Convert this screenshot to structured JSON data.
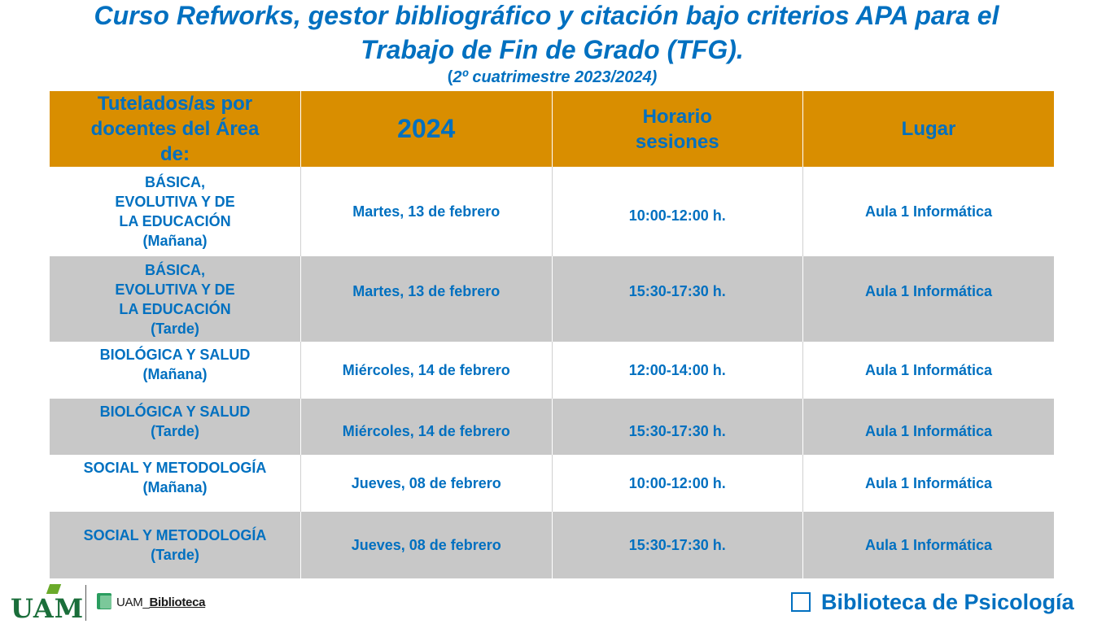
{
  "title": {
    "line1": "Curso Refworks, gestor bibliográfico y citación bajo criterios APA para el",
    "line2": "Trabajo de Fin de Grado (TFG).",
    "line3_open": "(",
    "line3_text": "2º cuatrimestre 2023/2024)"
  },
  "table": {
    "headers": {
      "area": "Tutelados/as por docentes del Área de:",
      "year": "2024",
      "time": "Horario sesiones",
      "place": "Lugar"
    },
    "rows": [
      {
        "area": "BÁSICA,\nEVOLUTIVA Y DE\nLA EDUCACIÓN\n(Mañana)",
        "date": "Martes, 13 de febrero",
        "time": "10:00-12:00 h.",
        "place": "Aula 1 Informática"
      },
      {
        "area": "BÁSICA,\nEVOLUTIVA Y DE\nLA EDUCACIÓN\n(Tarde)",
        "date": "Martes, 13 de febrero",
        "time": "15:30-17:30 h.",
        "place": "Aula 1 Informática"
      },
      {
        "area": "BIOLÓGICA Y SALUD\n(Mañana)",
        "date": "Miércoles, 14 de febrero",
        "time": "12:00-14:00 h.",
        "place": "Aula 1 Informática"
      },
      {
        "area": "BIOLÓGICA Y SALUD\n(Tarde)",
        "date": "Miércoles, 14 de febrero",
        "time": "15:30-17:30 h.",
        "place": "Aula 1 Informática"
      },
      {
        "area": "SOCIAL Y METODOLOGÍA\n(Mañana)",
        "date": "Jueves, 08 de febrero",
        "time": "10:00-12:00 h.",
        "place": "Aula 1 Informática"
      },
      {
        "area": "SOCIAL Y METODOLOGÍA\n(Tarde)",
        "date": "Jueves, 08 de febrero",
        "time": "15:30-17:30 h.",
        "place": "Aula 1 Informática"
      }
    ]
  },
  "footer": {
    "uam_logo": "UAM",
    "library_prefix": "UAM_",
    "library_name": "Biblioteca",
    "checkbox_label": "Biblioteca de Psicología"
  },
  "colors": {
    "text_blue": "#0070c0",
    "header_orange": "#d98e00",
    "row_gray": "#c8c8c8"
  }
}
